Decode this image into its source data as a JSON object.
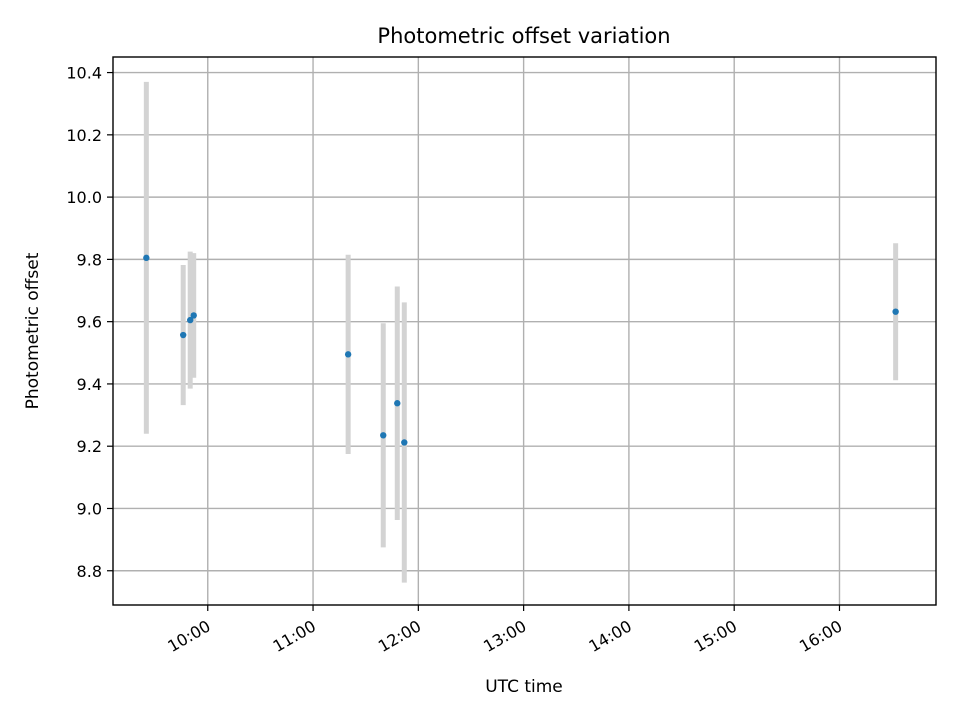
{
  "chart_data": {
    "type": "scatter",
    "title": "Photometric offset variation",
    "xlabel": "UTC time",
    "ylabel": "Photometric offset",
    "x_axis_kind": "time",
    "xlim": [
      "09:06",
      "16:55"
    ],
    "ylim": [
      8.69,
      10.45
    ],
    "xticks": [
      "10:00",
      "11:00",
      "12:00",
      "13:00",
      "14:00",
      "15:00",
      "16:00"
    ],
    "yticks": [
      "8.8",
      "9.0",
      "9.2",
      "9.4",
      "9.6",
      "9.8",
      "10.0",
      "10.2",
      "10.4"
    ],
    "grid": true,
    "point_color": "#1f77b4",
    "errorbar_color": "#d3d3d3",
    "points": [
      {
        "x": "09:25",
        "y": 9.805,
        "yerr": 0.565
      },
      {
        "x": "09:46",
        "y": 9.557,
        "yerr": 0.225
      },
      {
        "x": "09:50",
        "y": 9.605,
        "yerr": 0.22
      },
      {
        "x": "09:52",
        "y": 9.62,
        "yerr": 0.2
      },
      {
        "x": "11:20",
        "y": 9.495,
        "yerr": 0.32
      },
      {
        "x": "11:40",
        "y": 9.235,
        "yerr": 0.36
      },
      {
        "x": "11:48",
        "y": 9.338,
        "yerr": 0.375
      },
      {
        "x": "11:52",
        "y": 9.212,
        "yerr": 0.45
      },
      {
        "x": "16:32",
        "y": 9.632,
        "yerr": 0.22
      }
    ]
  }
}
